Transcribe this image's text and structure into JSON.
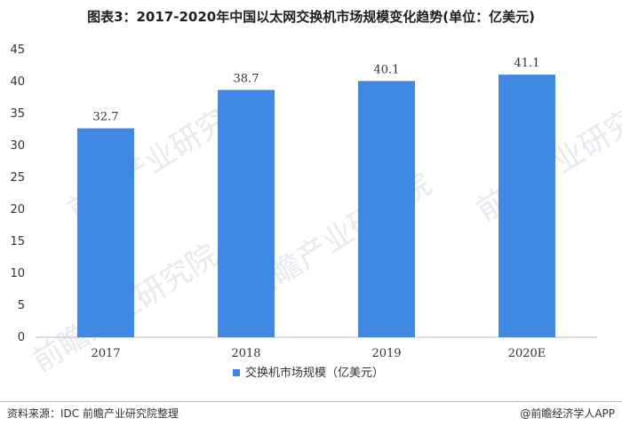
{
  "title": "图表3：2017-2020年中国以太网交换机市场规模变化趋势(单位：亿美元)",
  "watermark": "前瞻产业研究院",
  "footer": {
    "source": "资料来源：IDC 前瞻产业研究院整理",
    "credit": "@前瞻经济学人APP"
  },
  "colors": {
    "bar": "#3f88e3",
    "axis": "#bfbfbf",
    "text": "#333333"
  },
  "chart_data": {
    "type": "bar",
    "title": "图表3：2017-2020年中国以太网交换机市场规模变化趋势(单位：亿美元)",
    "categories": [
      "2017",
      "2018",
      "2019",
      "2020E"
    ],
    "series": [
      {
        "name": "交换机市场规模（亿美元）",
        "values": [
          32.7,
          38.7,
          40.1,
          41.1
        ]
      }
    ],
    "data_labels": [
      "32.7",
      "38.7",
      "40.1",
      "41.1"
    ],
    "ylim": [
      0,
      45
    ],
    "yticks": [
      0,
      5,
      10,
      15,
      20,
      25,
      30,
      35,
      40,
      45
    ],
    "grid": false,
    "legend": "bottom-center"
  }
}
